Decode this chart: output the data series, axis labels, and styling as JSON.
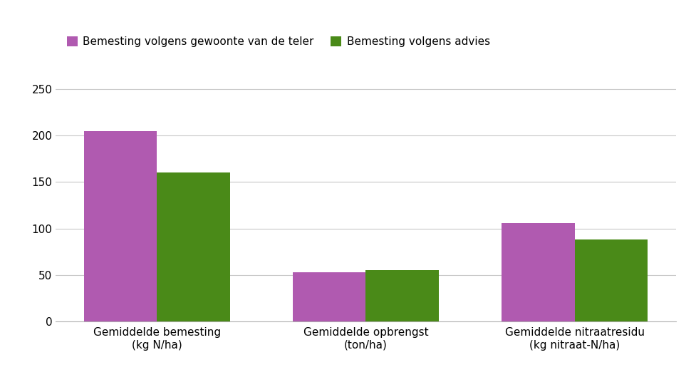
{
  "categories": [
    "Gemiddelde bemesting\n(kg N/ha)",
    "Gemiddelde opbrengst\n(ton/ha)",
    "Gemiddelde nitraatresidu\n(kg nitraat-N/ha)"
  ],
  "series1_label": "Bemesting volgens gewoonte van de teler",
  "series2_label": "Bemesting volgens advies",
  "series1_values": [
    205,
    53,
    106
  ],
  "series2_values": [
    160,
    55,
    88
  ],
  "series1_color": "#b05ab0",
  "series2_color": "#4a8a18",
  "ylim": [
    0,
    270
  ],
  "yticks": [
    0,
    50,
    100,
    150,
    200,
    250
  ],
  "bar_width": 0.35,
  "background_color": "#ffffff",
  "grid_color": "#c8c8c8",
  "legend_fontsize": 11,
  "tick_fontsize": 11
}
